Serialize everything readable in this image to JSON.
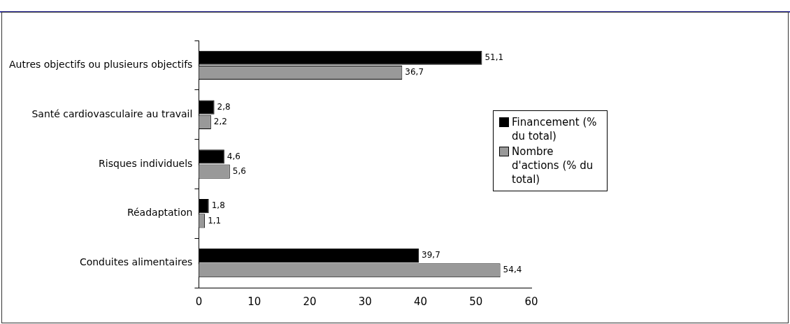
{
  "chart_data": {
    "type": "bar",
    "orientation": "horizontal",
    "categories": [
      "Autres objectifs ou plusieurs objectifs",
      "Santé cardiovasculaire au travail",
      "Risques individuels",
      "Réadaptation",
      "Conduites alimentaires"
    ],
    "series": [
      {
        "name": "Financement (% du total)",
        "color": "#000000",
        "values": [
          51.1,
          2.8,
          4.6,
          1.8,
          39.7
        ],
        "value_labels": [
          "51,1",
          "2,8",
          "4,6",
          "1,8",
          "39,7"
        ]
      },
      {
        "name": "Nombre d'actions (% du total)",
        "color": "#999999",
        "values": [
          36.7,
          2.2,
          5.6,
          1.1,
          54.4
        ],
        "value_labels": [
          "36,7",
          "2,2",
          "5,6",
          "1,1",
          "54,4"
        ]
      }
    ],
    "xlim": [
      0,
      60
    ],
    "xticks": [
      0,
      10,
      20,
      30,
      40,
      50,
      60
    ],
    "grid": false,
    "legend": "right"
  }
}
